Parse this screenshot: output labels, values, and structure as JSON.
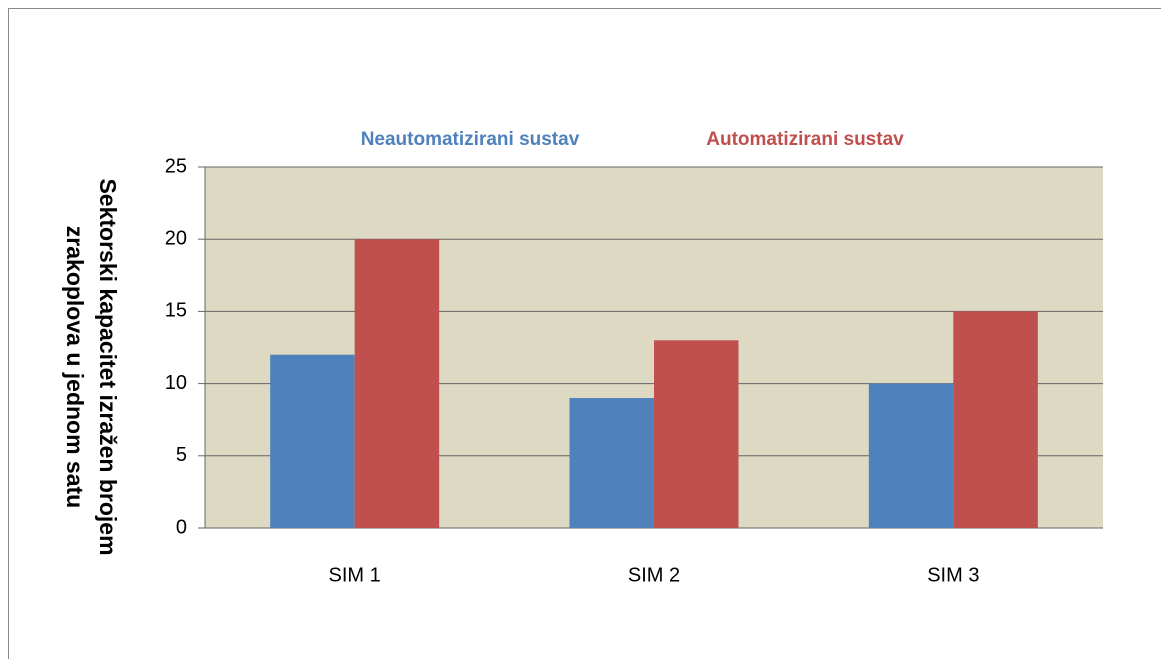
{
  "chart_data": {
    "type": "bar",
    "categories": [
      "SIM 1",
      "SIM 2",
      "SIM 3"
    ],
    "series": [
      {
        "name": "Neautomatizirani sustav",
        "color": "#4f81bd",
        "values": [
          12,
          9,
          10
        ]
      },
      {
        "name": "Automatizirani sustav",
        "color": "#c0504d",
        "values": [
          20,
          13,
          15
        ]
      }
    ],
    "ylabel": [
      "Sektorski kapacitet izražen brojem",
      "zrakoplova u jednom satu"
    ],
    "ylim": [
      0,
      25
    ],
    "yticks": [
      0,
      5,
      10,
      15,
      20,
      25
    ],
    "grid": true,
    "legend": "top",
    "plot_background": "#ddd9c3"
  }
}
